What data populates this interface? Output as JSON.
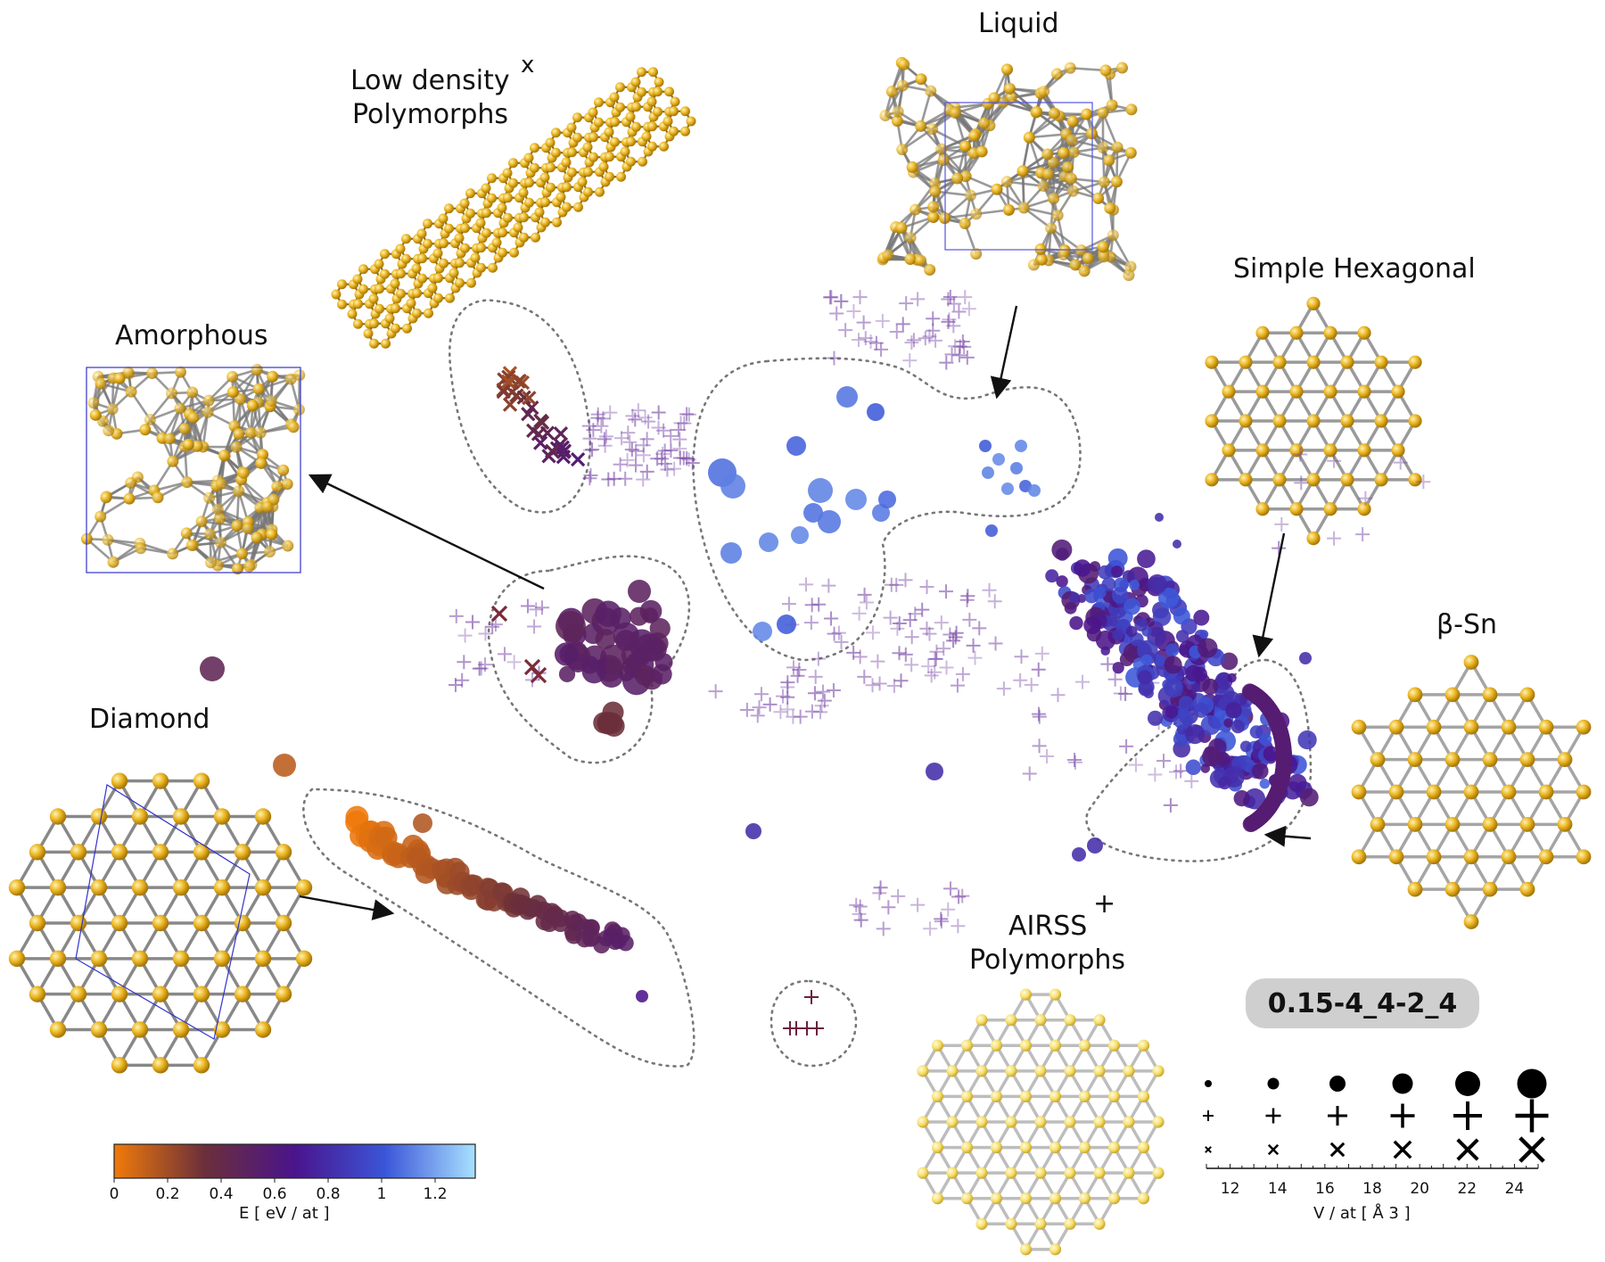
{
  "labels": {
    "low_density": "Low density",
    "low_density_2": "Polymorphs",
    "low_density_marker": "x",
    "liquid": "Liquid",
    "simple_hex": "Simple Hexagonal",
    "amorphous": "Amorphous",
    "beta_sn": "β-Sn",
    "diamond": "Diamond",
    "airss": "AIRSS",
    "airss_2": "Polymorphs",
    "airss_marker": "+"
  },
  "tag": "0.15-4_4-2_4",
  "colors": {
    "orange": "#f07a0a",
    "brown": "#6b2f3a",
    "purple": "#5b2ca8",
    "blue": "#4a6ee0",
    "lightblue": "#a8e1ff",
    "gold": "#e8b320",
    "gray_outline": "#777777"
  },
  "chart_data": {
    "type": "scatter",
    "colorbar": {
      "title": "E  [ eV / at ]",
      "ticks": [
        "0",
        "0.2",
        "0.4",
        "0.6",
        "0.8",
        "1",
        "1.2"
      ],
      "range": [
        0,
        1.35
      ],
      "colors": [
        "#f07a0a",
        "#6b2f3a",
        "#4a148c",
        "#3b55d8",
        "#a8e1ff"
      ]
    },
    "size_legend": {
      "title": "V / at  [ Å 3 ]",
      "ticks": [
        "12",
        "14",
        "16",
        "18",
        "20",
        "22",
        "24"
      ],
      "range": [
        11,
        25
      ]
    },
    "marker_legend": [
      "circle",
      "plus",
      "x"
    ]
  }
}
